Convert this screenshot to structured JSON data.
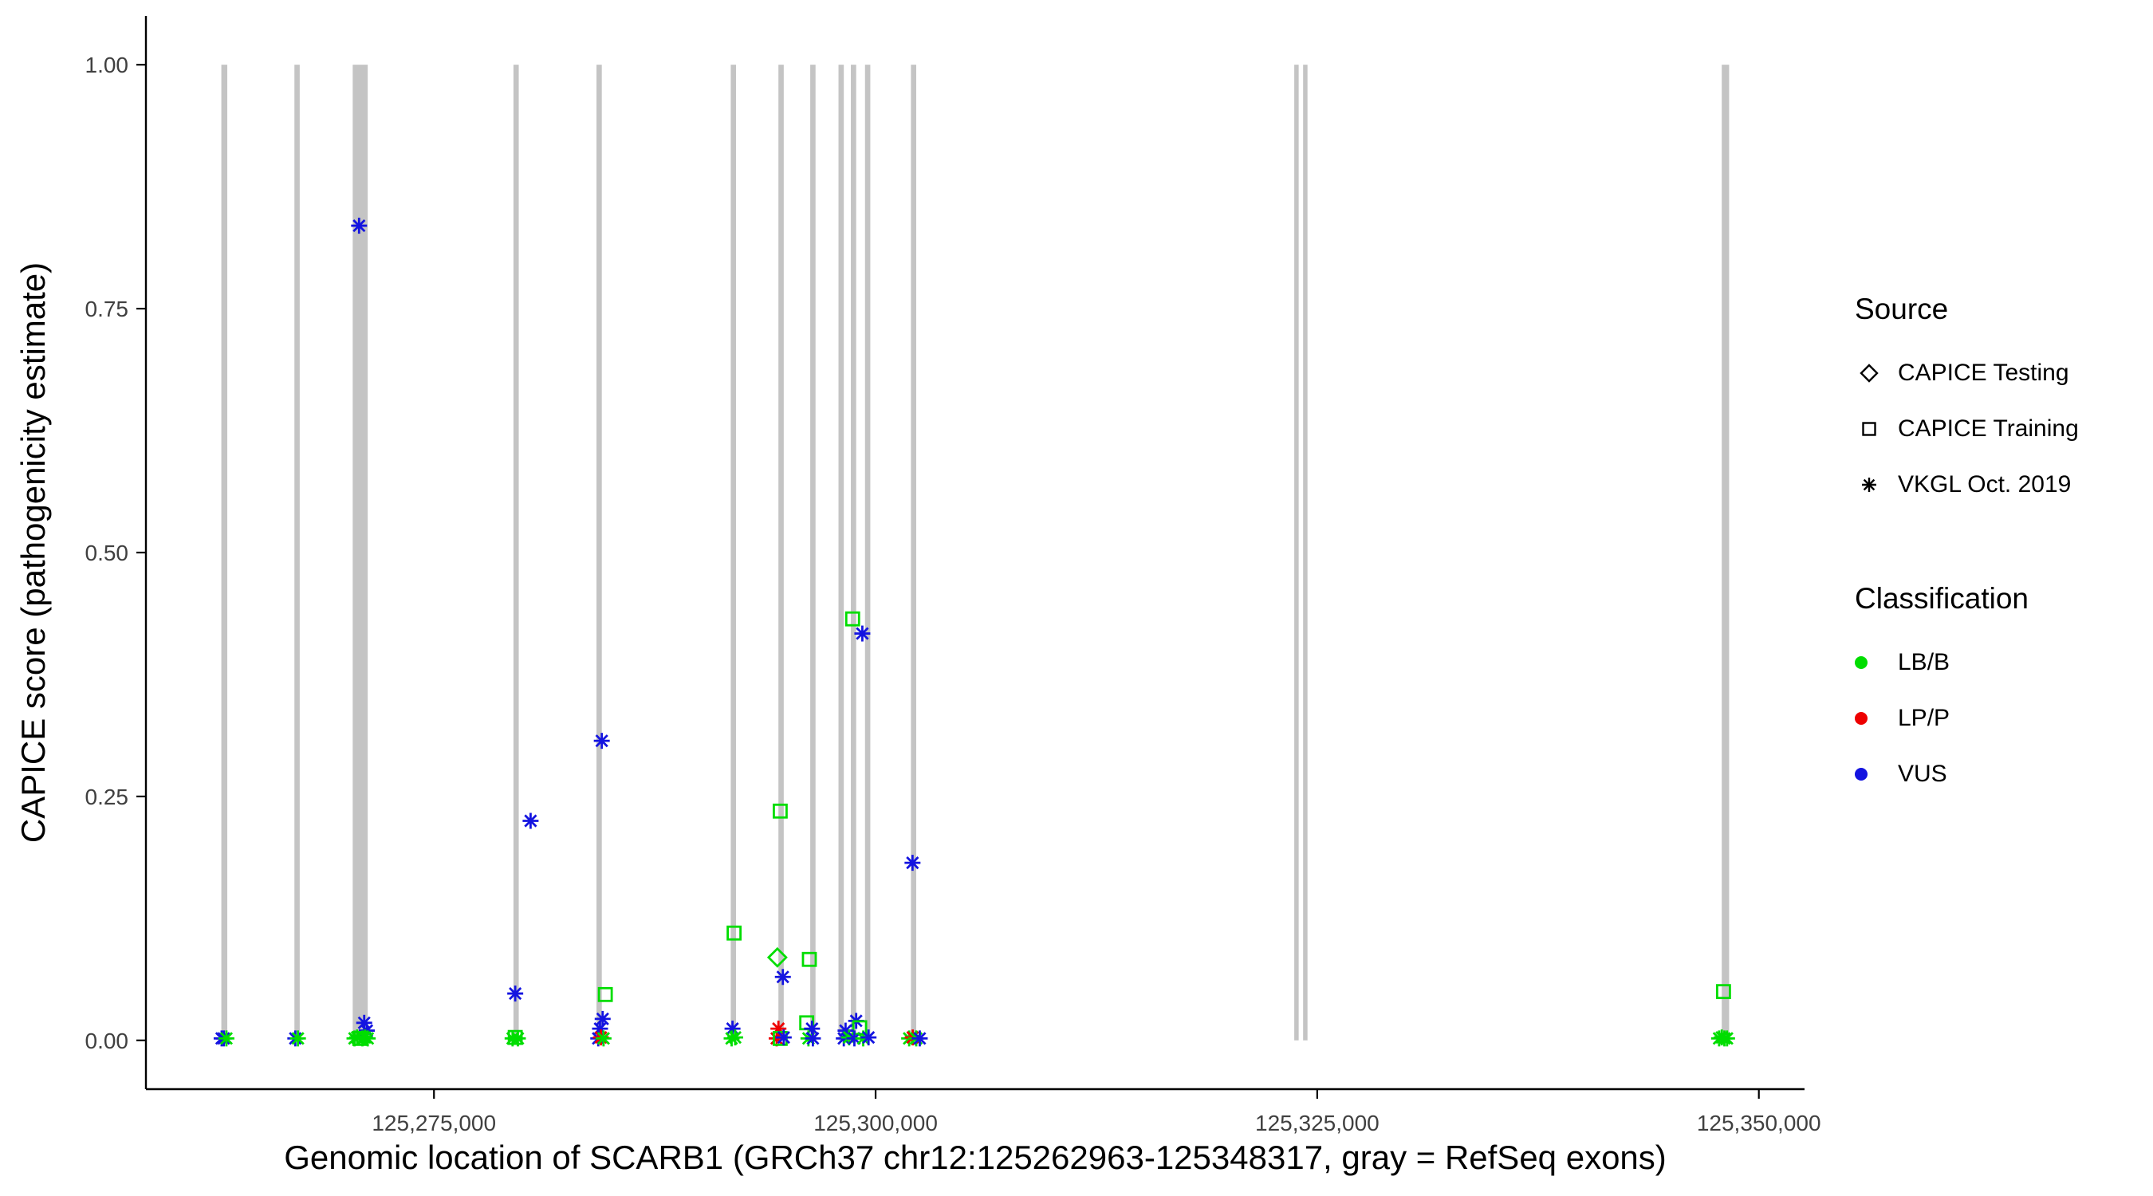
{
  "axes": {
    "x_title": "Genomic location of SCARB1 (GRCh37 chr12:125262963-125348317, gray = RefSeq exons)",
    "y_title": "CAPICE score (pathogenicity estimate)"
  },
  "legend": {
    "source": {
      "title": "Source",
      "items": [
        {
          "label": "CAPICE Testing",
          "marker": "diamond"
        },
        {
          "label": "CAPICE Training",
          "marker": "square"
        },
        {
          "label": "VKGL Oct. 2019",
          "marker": "asterisk"
        }
      ]
    },
    "classification": {
      "title": "Classification",
      "items": [
        {
          "label": "LB/B",
          "color": "#00dd00"
        },
        {
          "label": "LP/P",
          "color": "#ee0000"
        },
        {
          "label": "VUS",
          "color": "#1414e0"
        }
      ]
    }
  },
  "chart_data": {
    "type": "scatter",
    "title": "",
    "xlabel": "Genomic location of SCARB1 (GRCh37 chr12:125262963-125348317, gray = RefSeq exons)",
    "ylabel": "CAPICE score (pathogenicity estimate)",
    "xlim": [
      125258694,
      125352586
    ],
    "ylim": [
      -0.05,
      1.05
    ],
    "grid": false,
    "legend_position": "right",
    "x_ticks": [
      {
        "value": 125275000,
        "label": "125,275,000"
      },
      {
        "value": 125300000,
        "label": "125,300,000"
      },
      {
        "value": 125325000,
        "label": "125,325,000"
      },
      {
        "value": 125350000,
        "label": "125,350,000"
      }
    ],
    "y_ticks": [
      {
        "value": 0.0,
        "label": "0.00"
      },
      {
        "value": 0.25,
        "label": "0.25"
      },
      {
        "value": 0.5,
        "label": "0.50"
      },
      {
        "value": 0.75,
        "label": "0.75"
      },
      {
        "value": 1.0,
        "label": "1.00"
      }
    ],
    "exon_color": "#c4c4c4",
    "exons": [
      [
        125262963,
        125263300
      ],
      [
        125267100,
        125267400
      ],
      [
        125270400,
        125271250
      ],
      [
        125279500,
        125279800
      ],
      [
        125284200,
        125284500
      ],
      [
        125291800,
        125292100
      ],
      [
        125294500,
        125294800
      ],
      [
        125296300,
        125296600
      ],
      [
        125297900,
        125298200
      ],
      [
        125298600,
        125298900
      ],
      [
        125299400,
        125299700
      ],
      [
        125302000,
        125302300
      ],
      [
        125323700,
        125323950
      ],
      [
        125324200,
        125324450
      ],
      [
        125347900,
        125348317
      ]
    ],
    "source_shapes": {
      "CAPICE Testing": "diamond",
      "CAPICE Training": "square",
      "VKGL Oct. 2019": "asterisk"
    },
    "class_colors": {
      "LB/B": "#00dd00",
      "LP/P": "#ee0000",
      "VUS": "#1414e0"
    },
    "points": [
      {
        "x": 125270760,
        "y": 0.835,
        "source": "VKGL Oct. 2019",
        "class": "VUS"
      },
      {
        "x": 125279600,
        "y": 0.048,
        "source": "VKGL Oct. 2019",
        "class": "VUS"
      },
      {
        "x": 125280470,
        "y": 0.225,
        "source": "VKGL Oct. 2019",
        "class": "VUS"
      },
      {
        "x": 125284500,
        "y": 0.307,
        "source": "VKGL Oct. 2019",
        "class": "VUS"
      },
      {
        "x": 125284700,
        "y": 0.047,
        "source": "CAPICE Training",
        "class": "LB/B"
      },
      {
        "x": 125284550,
        "y": 0.022,
        "source": "VKGL Oct. 2019",
        "class": "VUS"
      },
      {
        "x": 125291990,
        "y": 0.11,
        "source": "CAPICE Training",
        "class": "LB/B"
      },
      {
        "x": 125294600,
        "y": 0.235,
        "source": "CAPICE Training",
        "class": "LB/B"
      },
      {
        "x": 125294440,
        "y": 0.085,
        "source": "CAPICE Testing",
        "class": "LB/B"
      },
      {
        "x": 125294750,
        "y": 0.065,
        "source": "VKGL Oct. 2019",
        "class": "VUS"
      },
      {
        "x": 125296250,
        "y": 0.083,
        "source": "CAPICE Training",
        "class": "LB/B"
      },
      {
        "x": 125298700,
        "y": 0.432,
        "source": "CAPICE Training",
        "class": "LB/B"
      },
      {
        "x": 125299250,
        "y": 0.417,
        "source": "VKGL Oct. 2019",
        "class": "VUS"
      },
      {
        "x": 125302090,
        "y": 0.182,
        "source": "VKGL Oct. 2019",
        "class": "VUS"
      },
      {
        "x": 125348000,
        "y": 0.05,
        "source": "CAPICE Training",
        "class": "LB/B"
      },
      {
        "x": 125271050,
        "y": 0.018,
        "source": "VKGL Oct. 2019",
        "class": "VUS"
      },
      {
        "x": 125271200,
        "y": 0.01,
        "source": "VKGL Oct. 2019",
        "class": "VUS"
      },
      {
        "x": 125284400,
        "y": 0.012,
        "source": "VKGL Oct. 2019",
        "class": "VUS"
      },
      {
        "x": 125291900,
        "y": 0.012,
        "source": "VKGL Oct. 2019",
        "class": "VUS"
      },
      {
        "x": 125294500,
        "y": 0.012,
        "source": "VKGL Oct. 2019",
        "class": "LP/P"
      },
      {
        "x": 125296100,
        "y": 0.018,
        "source": "CAPICE Training",
        "class": "LB/B"
      },
      {
        "x": 125296400,
        "y": 0.012,
        "source": "VKGL Oct. 2019",
        "class": "VUS"
      },
      {
        "x": 125298900,
        "y": 0.02,
        "source": "VKGL Oct. 2019",
        "class": "VUS"
      },
      {
        "x": 125299100,
        "y": 0.013,
        "source": "CAPICE Training",
        "class": "LB/B"
      },
      {
        "x": 125298300,
        "y": 0.01,
        "source": "VKGL Oct. 2019",
        "class": "VUS"
      },
      {
        "x": 125262980,
        "y": 0.002,
        "source": "VKGL Oct. 2019",
        "class": "VUS"
      },
      {
        "x": 125263100,
        "y": 0.002,
        "source": "VKGL Oct. 2019",
        "class": "VUS"
      },
      {
        "x": 125263250,
        "y": 0.002,
        "source": "VKGL Oct. 2019",
        "class": "LB/B"
      },
      {
        "x": 125267150,
        "y": 0.002,
        "source": "VKGL Oct. 2019",
        "class": "VUS"
      },
      {
        "x": 125267300,
        "y": 0.002,
        "source": "VKGL Oct. 2019",
        "class": "LB/B"
      },
      {
        "x": 125270500,
        "y": 0.002,
        "source": "VKGL Oct. 2019",
        "class": "LB/B"
      },
      {
        "x": 125270650,
        "y": 0.003,
        "source": "VKGL Oct. 2019",
        "class": "LB/B"
      },
      {
        "x": 125270800,
        "y": 0.002,
        "source": "CAPICE Training",
        "class": "LB/B"
      },
      {
        "x": 125270950,
        "y": 0.002,
        "source": "VKGL Oct. 2019",
        "class": "LB/B"
      },
      {
        "x": 125271100,
        "y": 0.003,
        "source": "VKGL Oct. 2019",
        "class": "LB/B"
      },
      {
        "x": 125271250,
        "y": 0.002,
        "source": "VKGL Oct. 2019",
        "class": "LB/B"
      },
      {
        "x": 125279450,
        "y": 0.002,
        "source": "VKGL Oct. 2019",
        "class": "LB/B"
      },
      {
        "x": 125279600,
        "y": 0.003,
        "source": "CAPICE Training",
        "class": "LB/B"
      },
      {
        "x": 125279750,
        "y": 0.002,
        "source": "VKGL Oct. 2019",
        "class": "LB/B"
      },
      {
        "x": 125284300,
        "y": 0.002,
        "source": "VKGL Oct. 2019",
        "class": "VUS"
      },
      {
        "x": 125284450,
        "y": 0.003,
        "source": "VKGL Oct. 2019",
        "class": "LP/P"
      },
      {
        "x": 125284600,
        "y": 0.002,
        "source": "VKGL Oct. 2019",
        "class": "LB/B"
      },
      {
        "x": 125291850,
        "y": 0.002,
        "source": "VKGL Oct. 2019",
        "class": "LB/B"
      },
      {
        "x": 125292050,
        "y": 0.003,
        "source": "VKGL Oct. 2019",
        "class": "LB/B"
      },
      {
        "x": 125294400,
        "y": 0.002,
        "source": "VKGL Oct. 2019",
        "class": "LP/P"
      },
      {
        "x": 125294600,
        "y": 0.002,
        "source": "CAPICE Training",
        "class": "LB/B"
      },
      {
        "x": 125294800,
        "y": 0.003,
        "source": "VKGL Oct. 2019",
        "class": "VUS"
      },
      {
        "x": 125296200,
        "y": 0.002,
        "source": "VKGL Oct. 2019",
        "class": "LB/B"
      },
      {
        "x": 125296450,
        "y": 0.002,
        "source": "VKGL Oct. 2019",
        "class": "VUS"
      },
      {
        "x": 125298200,
        "y": 0.002,
        "source": "VKGL Oct. 2019",
        "class": "VUS"
      },
      {
        "x": 125298500,
        "y": 0.003,
        "source": "VKGL Oct. 2019",
        "class": "LB/B"
      },
      {
        "x": 125298800,
        "y": 0.002,
        "source": "VKGL Oct. 2019",
        "class": "VUS"
      },
      {
        "x": 125299300,
        "y": 0.002,
        "source": "VKGL Oct. 2019",
        "class": "LB/B"
      },
      {
        "x": 125299600,
        "y": 0.003,
        "source": "VKGL Oct. 2019",
        "class": "VUS"
      },
      {
        "x": 125301900,
        "y": 0.002,
        "source": "VKGL Oct. 2019",
        "class": "LB/B"
      },
      {
        "x": 125302100,
        "y": 0.003,
        "source": "VKGL Oct. 2019",
        "class": "LP/P"
      },
      {
        "x": 125302300,
        "y": 0.002,
        "source": "VKGL Oct. 2019",
        "class": "LB/B"
      },
      {
        "x": 125302500,
        "y": 0.002,
        "source": "VKGL Oct. 2019",
        "class": "VUS"
      },
      {
        "x": 125347750,
        "y": 0.002,
        "source": "VKGL Oct. 2019",
        "class": "LB/B"
      },
      {
        "x": 125347900,
        "y": 0.003,
        "source": "VKGL Oct. 2019",
        "class": "LB/B"
      },
      {
        "x": 125348050,
        "y": 0.002,
        "source": "VKGL Oct. 2019",
        "class": "LB/B"
      },
      {
        "x": 125348200,
        "y": 0.002,
        "source": "VKGL Oct. 2019",
        "class": "LB/B"
      }
    ]
  }
}
